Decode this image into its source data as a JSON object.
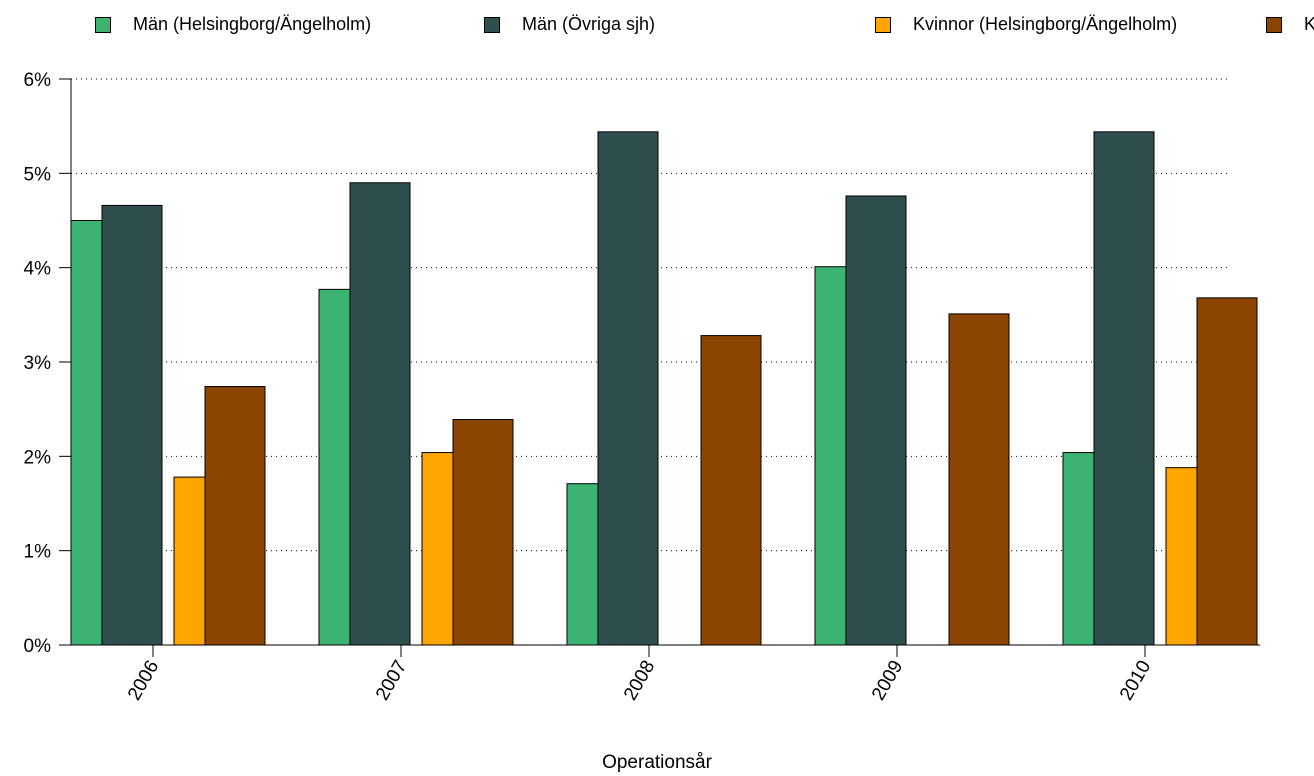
{
  "chart_data": {
    "type": "bar",
    "xlabel": "Operationsår",
    "ylabel": "",
    "categories": [
      "2006",
      "2007",
      "2008",
      "2009",
      "2010"
    ],
    "ylim": [
      0,
      6
    ],
    "yticks": [
      "0%",
      "1%",
      "2%",
      "3%",
      "4%",
      "5%",
      "6%"
    ],
    "grid": "horizontal dotted",
    "legend_position": "top",
    "series": [
      {
        "name": "Män (Helsingborg/Ängelholm)",
        "color": "#3CB371",
        "values": [
          4.5,
          3.77,
          1.71,
          4.01,
          2.04
        ]
      },
      {
        "name": "Män (Övriga sjh)",
        "color": "#2F4F4F",
        "values": [
          4.66,
          4.9,
          5.44,
          4.76,
          5.44
        ]
      },
      {
        "name": "Kvinnor (Helsingborg/Ängelholm)",
        "color": "#FFA500",
        "values": [
          1.78,
          2.04,
          0,
          0,
          1.88
        ]
      },
      {
        "name": "K",
        "color": "#8B4500",
        "values": [
          2.74,
          2.39,
          3.28,
          3.51,
          3.68
        ]
      }
    ]
  }
}
